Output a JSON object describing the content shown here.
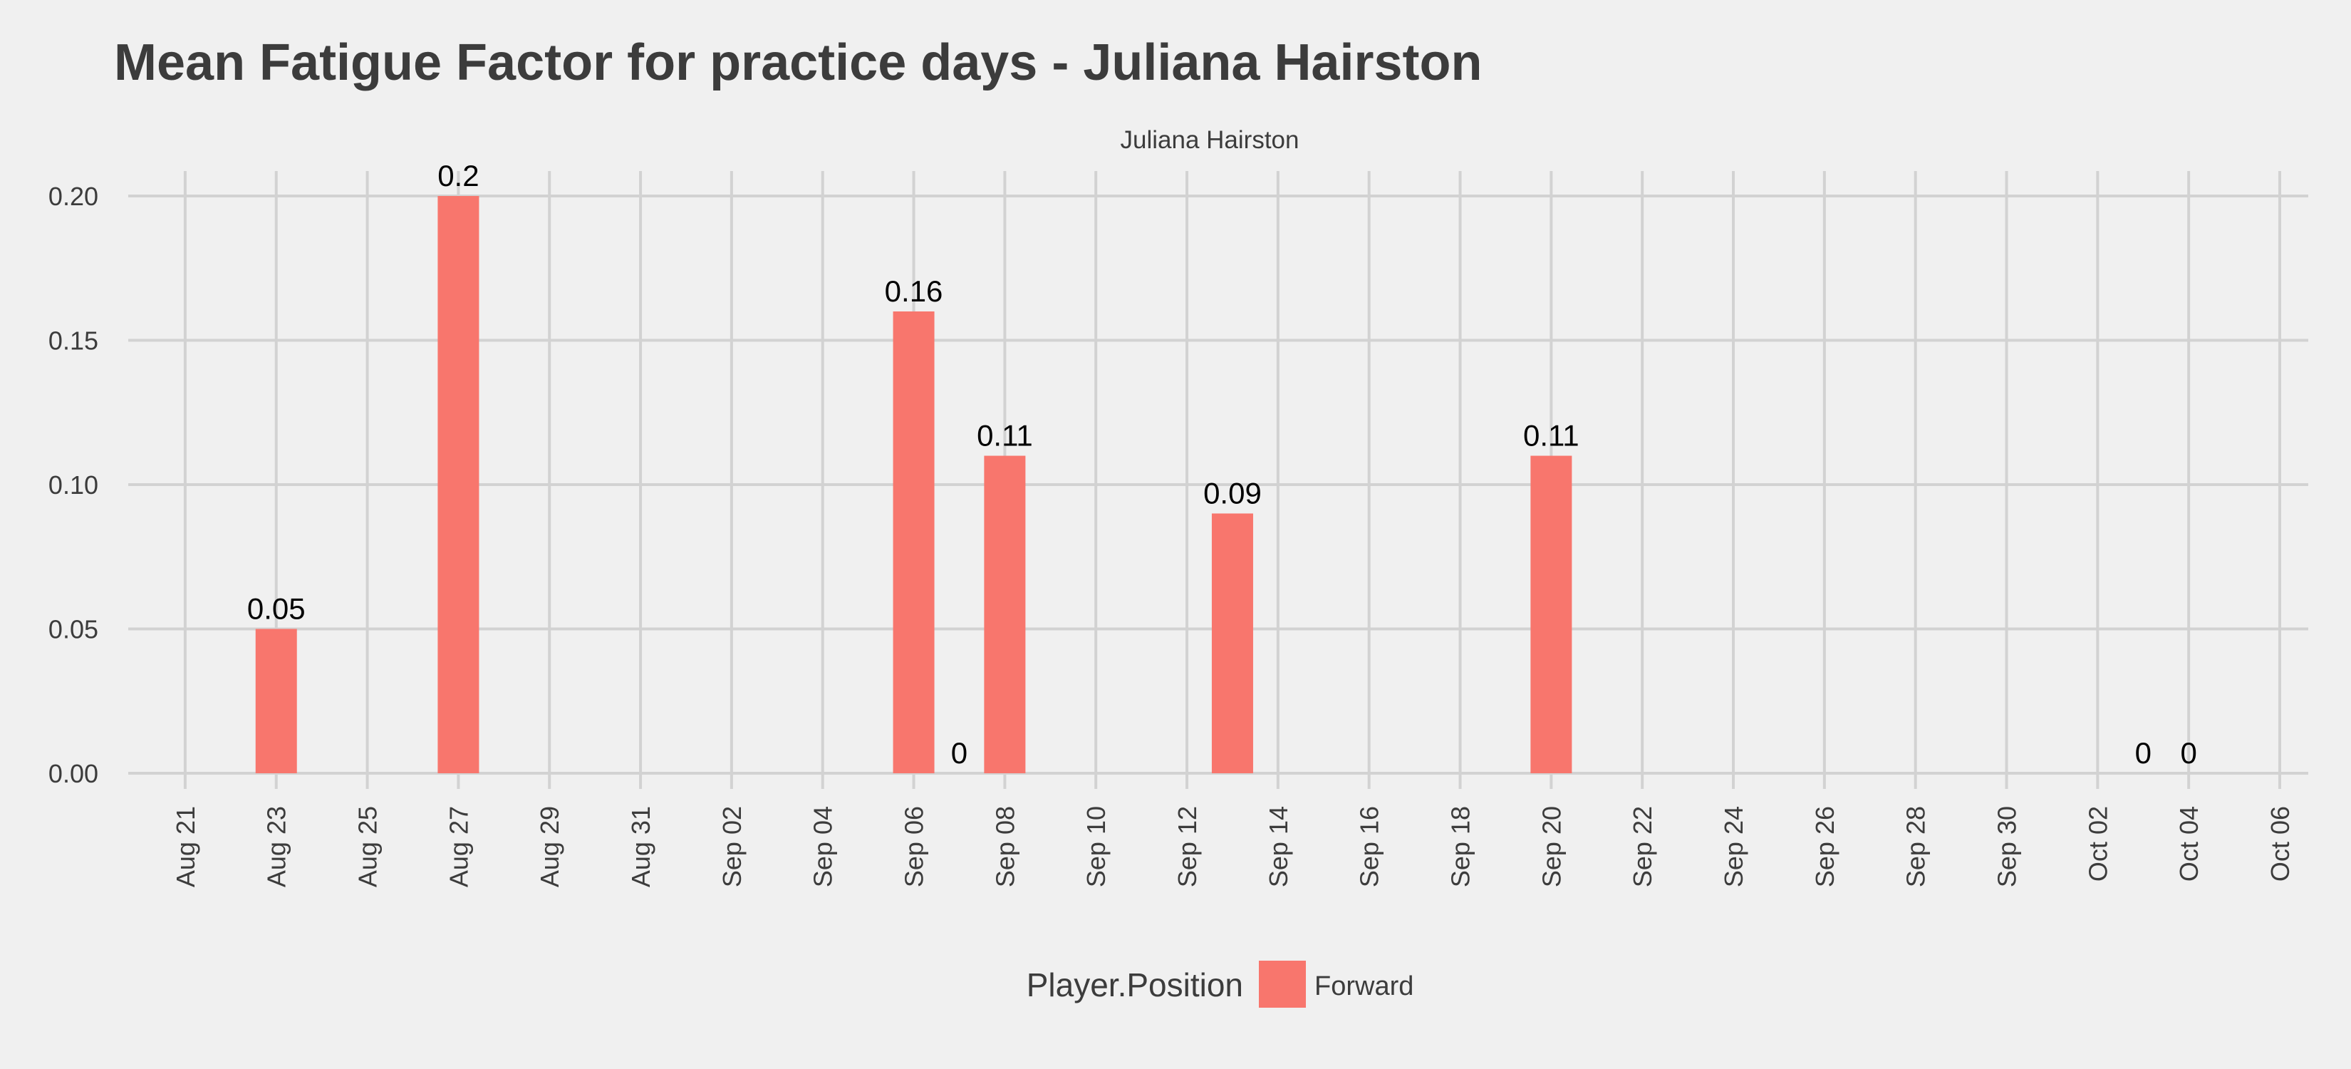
{
  "chart_data": {
    "type": "bar",
    "title": "Mean Fatigue Factor for practice days -  Juliana Hairston",
    "facet_label": "Juliana Hairston",
    "xlabel": "",
    "ylabel": "",
    "x_axis": {
      "type": "date",
      "range": [
        "2017-08-20",
        "2017-10-06"
      ],
      "ticks": [
        {
          "date": "2017-08-21",
          "label": "Aug 21"
        },
        {
          "date": "2017-08-23",
          "label": "Aug 23"
        },
        {
          "date": "2017-08-25",
          "label": "Aug 25"
        },
        {
          "date": "2017-08-27",
          "label": "Aug 27"
        },
        {
          "date": "2017-08-29",
          "label": "Aug 29"
        },
        {
          "date": "2017-08-31",
          "label": "Aug 31"
        },
        {
          "date": "2017-09-02",
          "label": "Sep 02"
        },
        {
          "date": "2017-09-04",
          "label": "Sep 04"
        },
        {
          "date": "2017-09-06",
          "label": "Sep 06"
        },
        {
          "date": "2017-09-08",
          "label": "Sep 08"
        },
        {
          "date": "2017-09-10",
          "label": "Sep 10"
        },
        {
          "date": "2017-09-12",
          "label": "Sep 12"
        },
        {
          "date": "2017-09-14",
          "label": "Sep 14"
        },
        {
          "date": "2017-09-16",
          "label": "Sep 16"
        },
        {
          "date": "2017-09-18",
          "label": "Sep 18"
        },
        {
          "date": "2017-09-20",
          "label": "Sep 20"
        },
        {
          "date": "2017-09-22",
          "label": "Sep 22"
        },
        {
          "date": "2017-09-24",
          "label": "Sep 24"
        },
        {
          "date": "2017-09-26",
          "label": "Sep 26"
        },
        {
          "date": "2017-09-28",
          "label": "Sep 28"
        },
        {
          "date": "2017-09-30",
          "label": "Sep 30"
        },
        {
          "date": "2017-10-02",
          "label": "Oct 02"
        },
        {
          "date": "2017-10-04",
          "label": "Oct 04"
        },
        {
          "date": "2017-10-06",
          "label": "Oct 06"
        }
      ]
    },
    "y_axis": {
      "range": [
        0,
        0.2
      ],
      "ticks": [
        {
          "value": 0,
          "label": "0.00"
        },
        {
          "value": 0.05,
          "label": "0.05"
        },
        {
          "value": 0.1,
          "label": "0.10"
        },
        {
          "value": 0.15,
          "label": "0.15"
        },
        {
          "value": 0.2,
          "label": "0.20"
        }
      ]
    },
    "grid": true,
    "series": [
      {
        "name": "Forward",
        "color": "#f8766d",
        "points": [
          {
            "x": "2017-08-23",
            "y": 0.05,
            "label": "0.05"
          },
          {
            "x": "2017-08-27",
            "y": 0.2,
            "label": "0.2"
          },
          {
            "x": "2017-09-06",
            "y": 0.16,
            "label": "0.16"
          },
          {
            "x": "2017-09-07",
            "y": 0,
            "label": "0"
          },
          {
            "x": "2017-09-08",
            "y": 0.11,
            "label": "0.11"
          },
          {
            "x": "2017-09-13",
            "y": 0.09,
            "label": "0.09"
          },
          {
            "x": "2017-09-20",
            "y": 0.11,
            "label": "0.11"
          },
          {
            "x": "2017-10-03",
            "y": 0,
            "label": "0"
          },
          {
            "x": "2017-10-04",
            "y": 0,
            "label": "0"
          }
        ]
      }
    ],
    "legend": {
      "title": "Player.Position",
      "position": "bottom",
      "entries": [
        {
          "label": "Forward",
          "color": "#f8766d"
        }
      ]
    }
  }
}
